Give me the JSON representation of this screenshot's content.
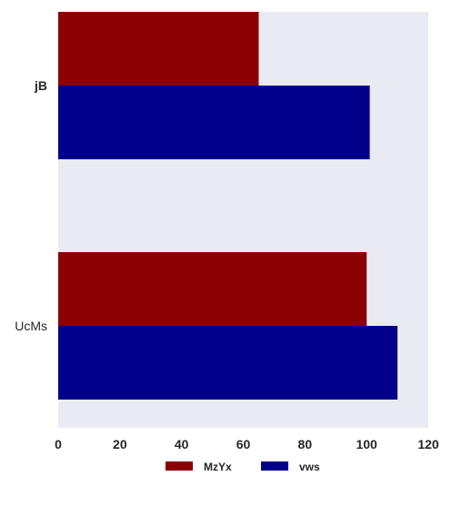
{
  "chart_data": {
    "type": "bar",
    "orientation": "horizontal",
    "categories": [
      "jB",
      "UcMs"
    ],
    "series": [
      {
        "name": "MzYx",
        "color": "#8b0000",
        "values": [
          65,
          100
        ]
      },
      {
        "name": "vws",
        "color": "#00008b",
        "values": [
          101,
          110
        ]
      }
    ],
    "xlim": [
      0,
      120
    ],
    "x_ticks": [
      "0",
      "20",
      "40",
      "60",
      "80",
      "100",
      "120"
    ],
    "title": "",
    "xlabel": "",
    "ylabel": "",
    "grid": false,
    "legend_position": "bottom",
    "plot_background": "#eaeaf2"
  }
}
